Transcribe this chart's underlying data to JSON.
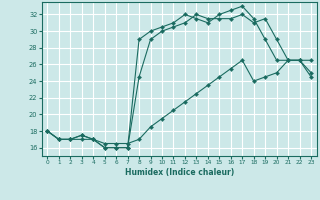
{
  "xlabel": "Humidex (Indice chaleur)",
  "bg_color": "#cce8e8",
  "grid_color": "#ffffff",
  "line_color": "#1a6b60",
  "xlim": [
    -0.5,
    23.5
  ],
  "ylim": [
    15.0,
    33.5
  ],
  "xticks": [
    0,
    1,
    2,
    3,
    4,
    5,
    6,
    7,
    8,
    9,
    10,
    11,
    12,
    13,
    14,
    15,
    16,
    17,
    18,
    19,
    20,
    21,
    22,
    23
  ],
  "yticks": [
    16,
    18,
    20,
    22,
    24,
    26,
    28,
    30,
    32
  ],
  "line1_x": [
    0,
    1,
    2,
    3,
    4,
    5,
    6,
    7,
    8,
    9,
    10,
    11,
    12,
    13,
    14,
    15,
    16,
    17,
    18,
    19,
    20,
    21,
    22,
    23
  ],
  "line1_y": [
    18,
    17,
    17,
    17.5,
    17,
    16.5,
    16.5,
    16.5,
    17,
    18.5,
    19.5,
    20.5,
    21.5,
    22.5,
    23.5,
    24.5,
    25.5,
    26.5,
    24,
    24.5,
    25,
    26.5,
    26.5,
    25
  ],
  "line2_x": [
    0,
    1,
    2,
    3,
    4,
    5,
    6,
    7,
    8,
    9,
    10,
    11,
    12,
    13,
    14,
    15,
    16,
    17,
    18,
    19,
    20,
    21,
    22,
    23
  ],
  "line2_y": [
    18,
    17,
    17,
    17.5,
    17,
    16,
    16,
    16,
    24.5,
    29,
    30,
    30.5,
    31,
    32,
    31.5,
    31.5,
    31.5,
    32,
    31,
    31.5,
    29,
    26.5,
    26.5,
    26.5
  ],
  "line3_x": [
    0,
    1,
    2,
    3,
    4,
    5,
    6,
    7,
    8,
    9,
    10,
    11,
    12,
    13,
    14,
    15,
    16,
    17,
    18,
    19,
    20,
    21,
    22,
    23
  ],
  "line3_y": [
    18,
    17,
    17,
    17,
    17,
    16,
    16,
    16,
    29,
    30,
    30.5,
    31,
    32,
    31.5,
    31,
    32,
    32.5,
    33,
    31.5,
    29,
    26.5,
    26.5,
    26.5,
    24.5
  ]
}
